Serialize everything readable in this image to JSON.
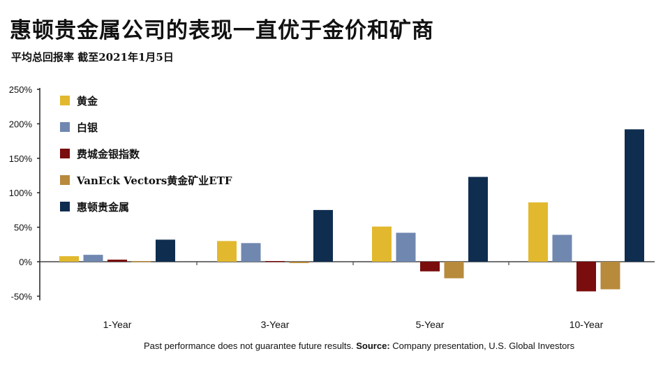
{
  "title": "惠顿贵金属公司的表现一直优于金价和矿商",
  "subtitle": "平均总回报率 截至2021年1月5日",
  "footer": {
    "note": "Past performance does not guarantee future results.",
    "source_label": "Source:",
    "source_text": "Company presentation, U.S. Global Investors"
  },
  "colors": {
    "gold": "#e2b82f",
    "silver": "#7088b0",
    "xau": "#7a0d0d",
    "gdx": "#b88a3c",
    "wheaton": "#0f2d4f"
  },
  "chart_data": {
    "type": "bar",
    "categories": [
      "1-Year",
      "3-Year",
      "5-Year",
      "10-Year"
    ],
    "ylim": [
      -50,
      250
    ],
    "yticks": [
      -50,
      0,
      50,
      100,
      150,
      200,
      250
    ],
    "ytick_labels": [
      "-50%",
      "0%",
      "50%",
      "100%",
      "150%",
      "200%",
      "250%"
    ],
    "grid": false,
    "legend_position": "top-left",
    "series": [
      {
        "name": "黄金",
        "color_key": "gold",
        "values": [
          8,
          30,
          51,
          86
        ]
      },
      {
        "name": "白银",
        "color_key": "silver",
        "values": [
          10,
          27,
          42,
          39
        ]
      },
      {
        "name": "费城金银指数",
        "color_key": "xau",
        "values": [
          3,
          0,
          -14,
          -43
        ]
      },
      {
        "name": "VanEck Vectors黄金矿业ETF",
        "color_key": "gdx",
        "values": [
          0,
          -2,
          -24,
          -40
        ]
      },
      {
        "name": "惠顿贵金属",
        "color_key": "wheaton",
        "values": [
          32,
          75,
          123,
          192
        ]
      }
    ]
  }
}
